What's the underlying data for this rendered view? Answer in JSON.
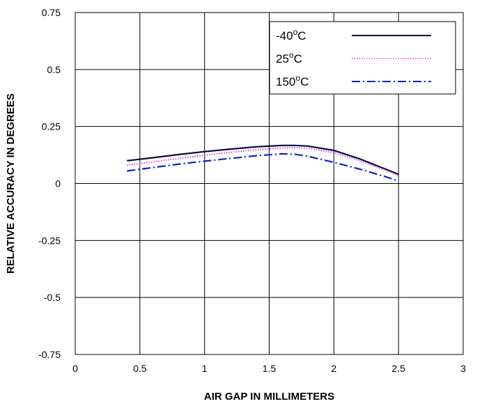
{
  "chart_data": {
    "type": "line",
    "title": "",
    "xlabel": "AIR GAP IN MILLIMETERS",
    "ylabel": "RELATIVE ACCURACY IN DEGREES",
    "xlim": [
      0,
      3
    ],
    "ylim": [
      -0.75,
      0.75
    ],
    "x_ticks": [
      0,
      0.5,
      1,
      1.5,
      2,
      2.5,
      3
    ],
    "x_tick_labels": [
      "0",
      "0.5",
      "1",
      "1.5",
      "2",
      "2.5",
      "3"
    ],
    "y_ticks": [
      0.75,
      0.5,
      0.25,
      0,
      -0.25,
      -0.5,
      -0.75
    ],
    "y_tick_labels": [
      "0.75",
      "0.5",
      "0.25",
      "0",
      "-0.25",
      "-0.5",
      "-0.75"
    ],
    "grid": true,
    "legend_position": "top-right",
    "series": [
      {
        "name": "-40",
        "unit": "C",
        "color": "#0a0a3a",
        "dash": "solid",
        "x": [
          0.4,
          0.6,
          0.8,
          1.0,
          1.2,
          1.4,
          1.6,
          1.7,
          1.8,
          2.0,
          2.2,
          2.4,
          2.5
        ],
        "y": [
          0.1,
          0.113,
          0.127,
          0.14,
          0.151,
          0.161,
          0.167,
          0.167,
          0.164,
          0.145,
          0.108,
          0.063,
          0.04
        ]
      },
      {
        "name": "25",
        "unit": "C",
        "color": "#e040e0",
        "dash": "dotted",
        "x": [
          0.4,
          0.6,
          0.8,
          1.0,
          1.2,
          1.4,
          1.6,
          1.7,
          1.8,
          2.0,
          2.2,
          2.4,
          2.5
        ],
        "y": [
          0.08,
          0.095,
          0.11,
          0.124,
          0.137,
          0.148,
          0.156,
          0.157,
          0.155,
          0.135,
          0.1,
          0.058,
          0.035
        ]
      },
      {
        "name": "150",
        "unit": "C",
        "color": "#1020c0",
        "dash": "dashdot",
        "x": [
          0.4,
          0.6,
          0.8,
          1.0,
          1.2,
          1.4,
          1.6,
          1.7,
          1.8,
          2.0,
          2.2,
          2.4,
          2.5
        ],
        "y": [
          0.055,
          0.07,
          0.085,
          0.098,
          0.11,
          0.122,
          0.13,
          0.128,
          0.119,
          0.093,
          0.063,
          0.03,
          0.01
        ]
      }
    ]
  }
}
